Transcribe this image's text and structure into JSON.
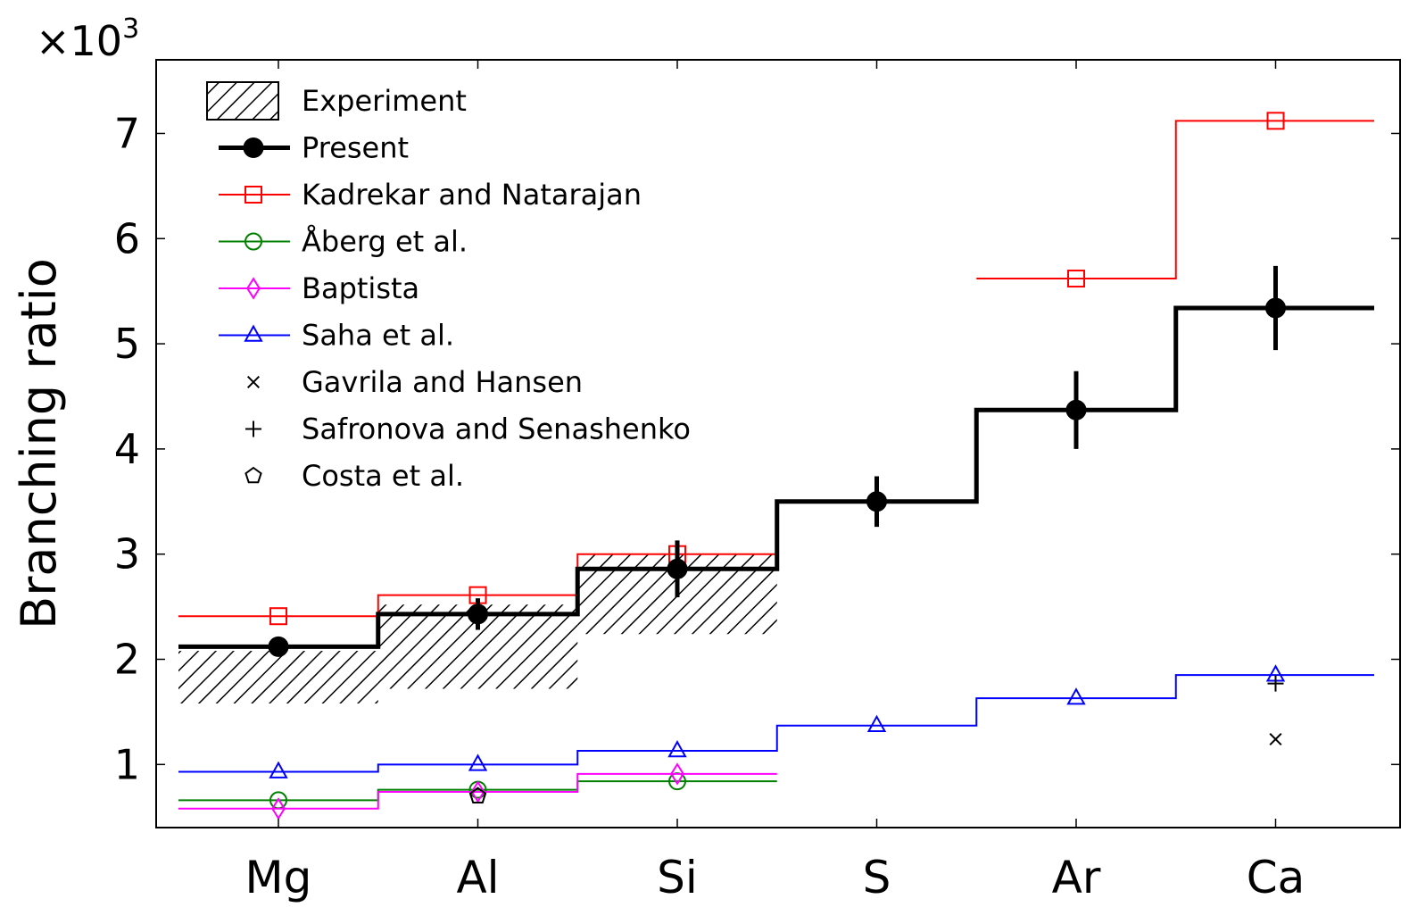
{
  "chart_data": {
    "type": "line",
    "categories": [
      "Mg",
      "Al",
      "Si",
      "S",
      "Ar",
      "Ca"
    ],
    "ylabel": "Branching ratio",
    "y_multiplier": "×10",
    "y_multiplier_exp": "3",
    "ylim": [
      0.4,
      7.7
    ],
    "y_ticks": [
      1,
      2,
      3,
      4,
      5,
      6,
      7
    ],
    "legend_position": "top-left",
    "experiment": {
      "name": "Experiment",
      "ranges": [
        {
          "category": "Mg",
          "low": 1.58,
          "high": 2.08
        },
        {
          "category": "Al",
          "low": 1.72,
          "high": 2.52
        },
        {
          "category": "Si",
          "low": 2.24,
          "high": 3.0
        }
      ]
    },
    "series": [
      {
        "name": "Present",
        "color": "#000000",
        "marker": "filled-circle",
        "style": "step-thick",
        "values": [
          2.12,
          2.43,
          2.86,
          3.5,
          4.37,
          5.34
        ],
        "errors": [
          0.0,
          0.15,
          0.27,
          0.24,
          0.37,
          0.4
        ]
      },
      {
        "name": "Kadrekar and Natarajan",
        "color": "#ff0000",
        "marker": "square",
        "style": "step",
        "values": [
          2.41,
          2.61,
          3.0,
          null,
          5.62,
          7.12
        ]
      },
      {
        "name": "Åberg et al.",
        "color": "#008000",
        "marker": "circle",
        "style": "step",
        "values": [
          0.66,
          0.76,
          0.84,
          null,
          null,
          null
        ]
      },
      {
        "name": "Baptista",
        "color": "#ff00ff",
        "marker": "diamond",
        "style": "step",
        "values": [
          0.58,
          0.74,
          0.91,
          null,
          null,
          null
        ]
      },
      {
        "name": "Saha et al.",
        "color": "#0000ff",
        "marker": "triangle",
        "style": "step",
        "values": [
          0.93,
          1.0,
          1.13,
          1.37,
          1.63,
          1.85
        ]
      },
      {
        "name": "Gavrila and Hansen",
        "color": "#000000",
        "marker": "x",
        "style": "points",
        "values": [
          null,
          null,
          null,
          null,
          null,
          1.24
        ]
      },
      {
        "name": "Safronova and Senashenko",
        "color": "#000000",
        "marker": "plus",
        "style": "points",
        "values": [
          null,
          null,
          null,
          null,
          null,
          1.77
        ]
      },
      {
        "name": "Costa et al.",
        "color": "#000000",
        "marker": "pentagon",
        "style": "points",
        "values": [
          null,
          0.7,
          null,
          null,
          null,
          null
        ]
      }
    ]
  }
}
